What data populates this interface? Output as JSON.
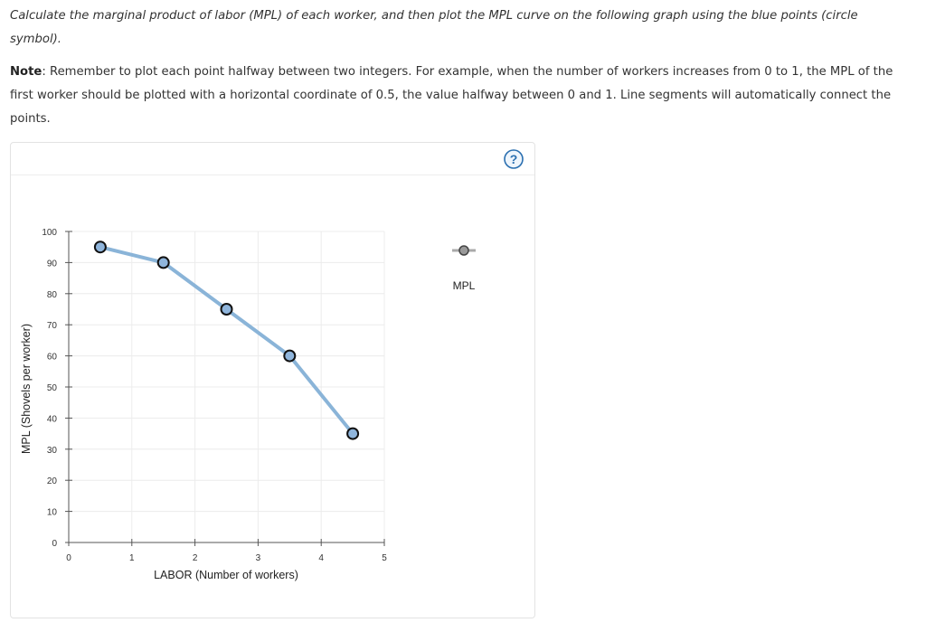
{
  "instruction": {
    "text": "Calculate the marginal product of labor (MPL) of each worker, and then plot the MPL curve on the following graph using the blue points (circle symbol)."
  },
  "note": {
    "label": "Note",
    "text": ": Remember to plot each point halfway between two integers. For example, when the number of workers increases from 0 to 1, the MPL of the first worker should be plotted with a horizontal coordinate of 0.5, the value halfway between 0 and 1. Line segments will automatically connect the points."
  },
  "help": {
    "icon": "question-circle-icon",
    "glyph": "?"
  },
  "colors": {
    "line": "#8ab4d8",
    "point_fill": "#8fb5dc",
    "point_stroke": "#111111",
    "legend_line": "#aaaaaa",
    "legend_point": "#999999",
    "help_accent": "#2a6fb0",
    "grid": "#ececec"
  },
  "chart_data": {
    "type": "line",
    "xlabel": "LABOR (Number of workers)",
    "ylabel": "MPL (Shovels per worker)",
    "xlim": [
      0,
      5
    ],
    "ylim": [
      0,
      100
    ],
    "xticks": [
      "0",
      "1",
      "2",
      "3",
      "4",
      "5"
    ],
    "yticks": [
      "0",
      "10",
      "20",
      "30",
      "40",
      "50",
      "60",
      "70",
      "80",
      "90",
      "100"
    ],
    "grid": true,
    "legend_placement": "right",
    "series": [
      {
        "name": "MPL",
        "x": [
          0.5,
          1.5,
          2.5,
          3.5,
          4.5
        ],
        "y": [
          95,
          90,
          75,
          60,
          35
        ]
      }
    ]
  }
}
